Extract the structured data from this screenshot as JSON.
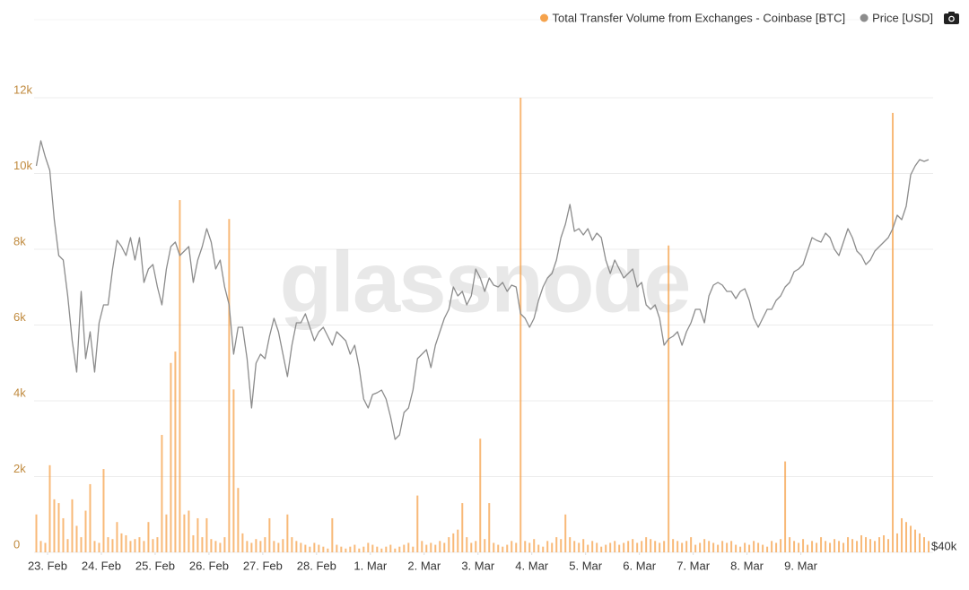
{
  "chart_data": {
    "type": "bar",
    "watermark": "glassnode",
    "x": [
      -5,
      -3,
      -1,
      1,
      3,
      5,
      7,
      9,
      11,
      13,
      15,
      17,
      19,
      21,
      23,
      25,
      27,
      29,
      31,
      33,
      35,
      37,
      39,
      41,
      43,
      45,
      47,
      49,
      51,
      53,
      55,
      57,
      59,
      61,
      63,
      65,
      67,
      69,
      71,
      73,
      75,
      77,
      79,
      81,
      83,
      85,
      87,
      89,
      91,
      93,
      95,
      97,
      99,
      101,
      103,
      105,
      107,
      109,
      111,
      113,
      115,
      117,
      119,
      121,
      123,
      125,
      127,
      129,
      131,
      133,
      135,
      137,
      139,
      141,
      143,
      145,
      147,
      149,
      151,
      153,
      155,
      157,
      159,
      161,
      163,
      165,
      167,
      169,
      171,
      173,
      175,
      177,
      179,
      181,
      183,
      185,
      187,
      189,
      191,
      193,
      195,
      197,
      199,
      201,
      203,
      205,
      207,
      209,
      211,
      213,
      215,
      217,
      219,
      221,
      223,
      225,
      227,
      229,
      231,
      233,
      235,
      237,
      239,
      241,
      243,
      245,
      247,
      249,
      251,
      253,
      255,
      257,
      259,
      261,
      263,
      265,
      267,
      269,
      271,
      273,
      275,
      277,
      279,
      281,
      283,
      285,
      287,
      289,
      291,
      293,
      295,
      297,
      299,
      301,
      303,
      305,
      307,
      309,
      311,
      313,
      315,
      317,
      319,
      321,
      323,
      325,
      327,
      329,
      331,
      333,
      335,
      337,
      339,
      341,
      343,
      345,
      347,
      349,
      351,
      353,
      355,
      357,
      359,
      361,
      363,
      365,
      367,
      369,
      371,
      373,
      375,
      377,
      379,
      381,
      383,
      385,
      387,
      389,
      391,
      393
    ],
    "xlim": [
      -6,
      395
    ],
    "xticks": [
      {
        "value": 0,
        "label": "23. Feb"
      },
      {
        "value": 24,
        "label": "24. Feb"
      },
      {
        "value": 48,
        "label": "25. Feb"
      },
      {
        "value": 72,
        "label": "26. Feb"
      },
      {
        "value": 96,
        "label": "27. Feb"
      },
      {
        "value": 120,
        "label": "28. Feb"
      },
      {
        "value": 144,
        "label": "1. Mar"
      },
      {
        "value": 168,
        "label": "2. Mar"
      },
      {
        "value": 192,
        "label": "3. Mar"
      },
      {
        "value": 216,
        "label": "4. Mar"
      },
      {
        "value": 240,
        "label": "5. Mar"
      },
      {
        "value": 264,
        "label": "6. Mar"
      },
      {
        "value": 288,
        "label": "7. Mar"
      },
      {
        "value": 312,
        "label": "8. Mar"
      },
      {
        "value": 336,
        "label": "9. Mar"
      }
    ],
    "ylim": [
      0,
      12000
    ],
    "yticks": [
      0,
      {
        "value": 2000,
        "label": "2k"
      },
      {
        "value": 4000,
        "label": "4k"
      },
      {
        "value": 6000,
        "label": "6k"
      },
      {
        "value": 8000,
        "label": "8k"
      },
      {
        "value": 10000,
        "label": "10k"
      },
      {
        "value": 12000,
        "label": "12k"
      }
    ],
    "y2lim": [
      40000,
      55210
    ],
    "y2ticks": [
      {
        "value": 40000,
        "label": "$40k"
      }
    ],
    "grid": true,
    "legend": "top-right",
    "series": [
      {
        "name": "Total Transfer Volume from Exchanges - Coinbase [BTC]",
        "color": "#f5a24b",
        "type": "bar",
        "values": [
          1000,
          300,
          250,
          2300,
          1400,
          1300,
          900,
          350,
          1400,
          700,
          400,
          1100,
          1800,
          300,
          250,
          2200,
          400,
          350,
          800,
          500,
          450,
          300,
          350,
          400,
          300,
          800,
          350,
          400,
          3100,
          1000,
          5000,
          5300,
          9300,
          1000,
          1100,
          450,
          900,
          400,
          900,
          350,
          300,
          250,
          400,
          8800,
          4300,
          1700,
          500,
          300,
          250,
          350,
          300,
          400,
          900,
          300,
          250,
          350,
          1000,
          400,
          300,
          250,
          200,
          150,
          250,
          200,
          150,
          100,
          900,
          200,
          150,
          100,
          150,
          200,
          100,
          150,
          250,
          200,
          150,
          100,
          150,
          200,
          100,
          150,
          200,
          250,
          150,
          1500,
          300,
          200,
          250,
          200,
          300,
          250,
          400,
          500,
          600,
          1300,
          400,
          250,
          300,
          3000,
          350,
          1300,
          250,
          200,
          150,
          200,
          300,
          250,
          12000,
          300,
          250,
          350,
          200,
          150,
          300,
          250,
          400,
          350,
          1000,
          400,
          300,
          250,
          350,
          200,
          300,
          250,
          150,
          200,
          250,
          300,
          200,
          250,
          300,
          350,
          250,
          300,
          400,
          350,
          300,
          250,
          300,
          8100,
          350,
          300,
          250,
          300,
          400,
          200,
          250,
          350,
          300,
          250,
          200,
          300,
          250,
          300,
          200,
          150,
          250,
          200,
          300,
          250,
          200,
          150,
          300,
          250,
          350,
          2400,
          400,
          300,
          250,
          350,
          200,
          300,
          250,
          400,
          300,
          250,
          350,
          300,
          250,
          400,
          350,
          300,
          450,
          400,
          350,
          300,
          400,
          450,
          350,
          11600,
          500,
          900,
          800,
          700,
          600,
          500,
          400,
          300
        ]
      },
      {
        "name": "Price [USD]",
        "color": "#8c8c8c",
        "type": "line",
        "axis": "y2",
        "values": [
          52930,
          53770,
          53230,
          52780,
          51130,
          49930,
          49780,
          48580,
          47080,
          46030,
          48730,
          46480,
          47380,
          46030,
          47680,
          48280,
          48280,
          49480,
          50440,
          50230,
          49930,
          50530,
          49780,
          50530,
          49030,
          49480,
          49630,
          48880,
          48280,
          49480,
          50230,
          50380,
          49930,
          50080,
          50230,
          49030,
          49780,
          50230,
          50830,
          50380,
          49480,
          49780,
          48880,
          48280,
          46630,
          47530,
          47530,
          46480,
          44830,
          46330,
          46630,
          46480,
          47230,
          47830,
          47380,
          46630,
          45880,
          46930,
          47680,
          47680,
          47980,
          47530,
          47080,
          47380,
          47530,
          47230,
          46930,
          47380,
          47230,
          47080,
          46630,
          46930,
          46180,
          45130,
          44830,
          45280,
          45340,
          45430,
          45130,
          44530,
          43780,
          43930,
          44680,
          44830,
          45430,
          46480,
          46630,
          46780,
          46180,
          46930,
          47380,
          47830,
          48130,
          48880,
          48580,
          48730,
          48280,
          48580,
          49480,
          49180,
          48730,
          49180,
          48940,
          48880,
          49030,
          48730,
          48940,
          48880,
          47980,
          47830,
          47530,
          47830,
          48430,
          48880,
          49180,
          49330,
          49780,
          50530,
          50980,
          51640,
          50740,
          50830,
          50620,
          50830,
          50440,
          50680,
          50530,
          49780,
          49330,
          49780,
          49480,
          49180,
          49330,
          49480,
          48880,
          49030,
          48280,
          48130,
          48280,
          47830,
          46930,
          47140,
          47230,
          47380,
          46930,
          47380,
          47680,
          48130,
          48130,
          47680,
          48580,
          48940,
          49030,
          48940,
          48730,
          48730,
          48490,
          48730,
          48820,
          48430,
          47830,
          47530,
          47830,
          48130,
          48130,
          48430,
          48580,
          48880,
          49030,
          49390,
          49480,
          49630,
          50080,
          50530,
          50440,
          50380,
          50680,
          50530,
          50140,
          49930,
          50380,
          50830,
          50530,
          50080,
          49930,
          49630,
          49780,
          50080,
          50230,
          50380,
          50530,
          50830,
          51280,
          51130,
          51580,
          52630,
          52930,
          53140,
          53080,
          53140
        ]
      }
    ]
  }
}
